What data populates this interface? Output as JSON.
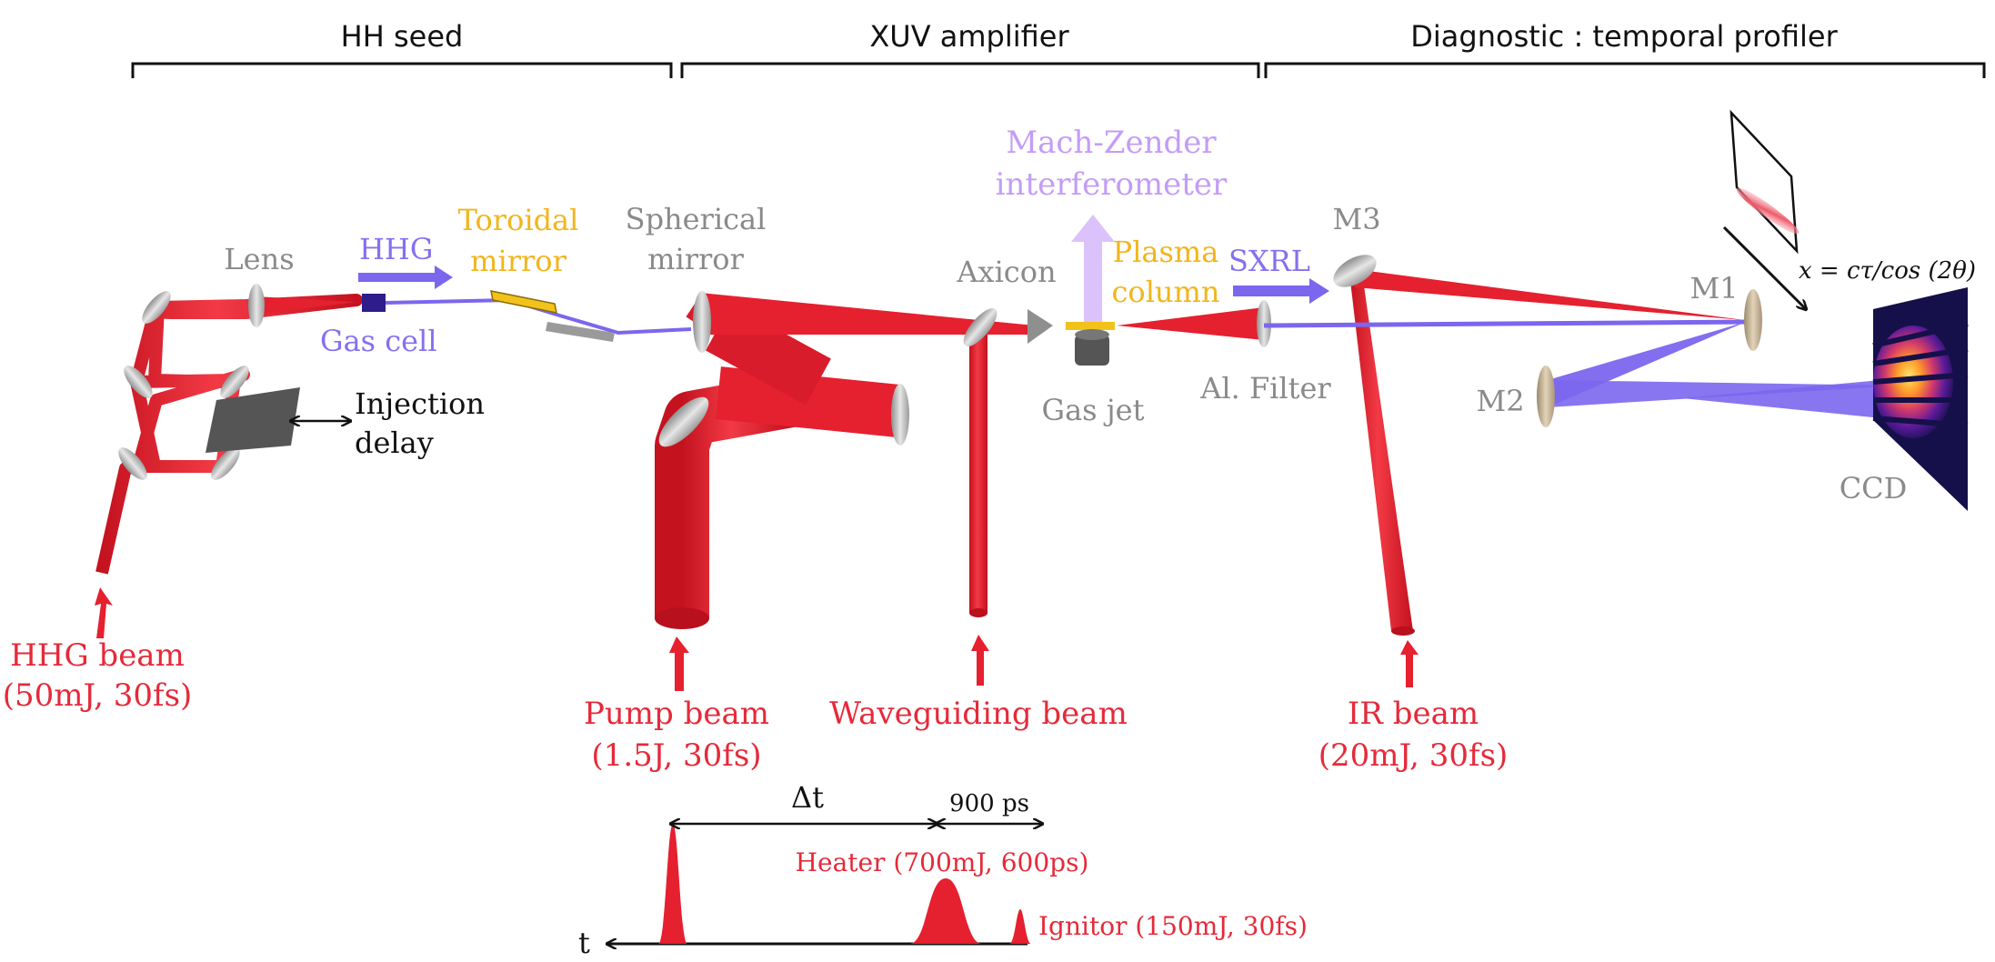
{
  "sections": {
    "hh_seed": "HH seed",
    "xuv_amplifier": "XUV amplifier",
    "diagnostic": "Diagnostic : temporal profiler"
  },
  "labels": {
    "lens": "Lens",
    "hhg": "HHG",
    "gas_cell": "Gas cell",
    "toroidal_mirror_1": "Toroidal",
    "toroidal_mirror_2": "mirror",
    "spherical_mirror_1": "Spherical",
    "spherical_mirror_2": "mirror",
    "axicon": "Axicon",
    "mach_zender_1": "Mach-Zender",
    "mach_zender_2": "interferometer",
    "plasma_column_1": "Plasma",
    "plasma_column_2": "column",
    "gas_jet": "Gas jet",
    "sxrl": "SXRL",
    "al_filter": "Al. Filter",
    "m1": "M1",
    "m2": "M2",
    "m3": "M3",
    "ccd": "CCD",
    "formula": "x = cτ/cos (2θ)",
    "injection_delay_1": "Injection",
    "injection_delay_2": "delay"
  },
  "beams": {
    "hhg_beam_1": "HHG beam",
    "hhg_beam_2": "(50mJ, 30fs)",
    "pump_beam_1": "Pump beam",
    "pump_beam_2": "(1.5J, 30fs)",
    "waveguiding_beam": "Waveguiding beam",
    "ir_beam_1": "IR beam",
    "ir_beam_2": "(20mJ, 30fs)"
  },
  "timing": {
    "delta_t": "Δt",
    "gap": "900 ps",
    "heater": "Heater (700mJ, 600ps)",
    "ignitor": "Ignitor (150mJ, 30fs)",
    "t_axis": "t"
  },
  "colors": {
    "ir_red": "#e5202f",
    "xuv_purple": "#7b66ee",
    "mach_zender": "#dcc2fb",
    "plasma": "#f2c21c",
    "mirror_gray": "#b9b9b9"
  }
}
